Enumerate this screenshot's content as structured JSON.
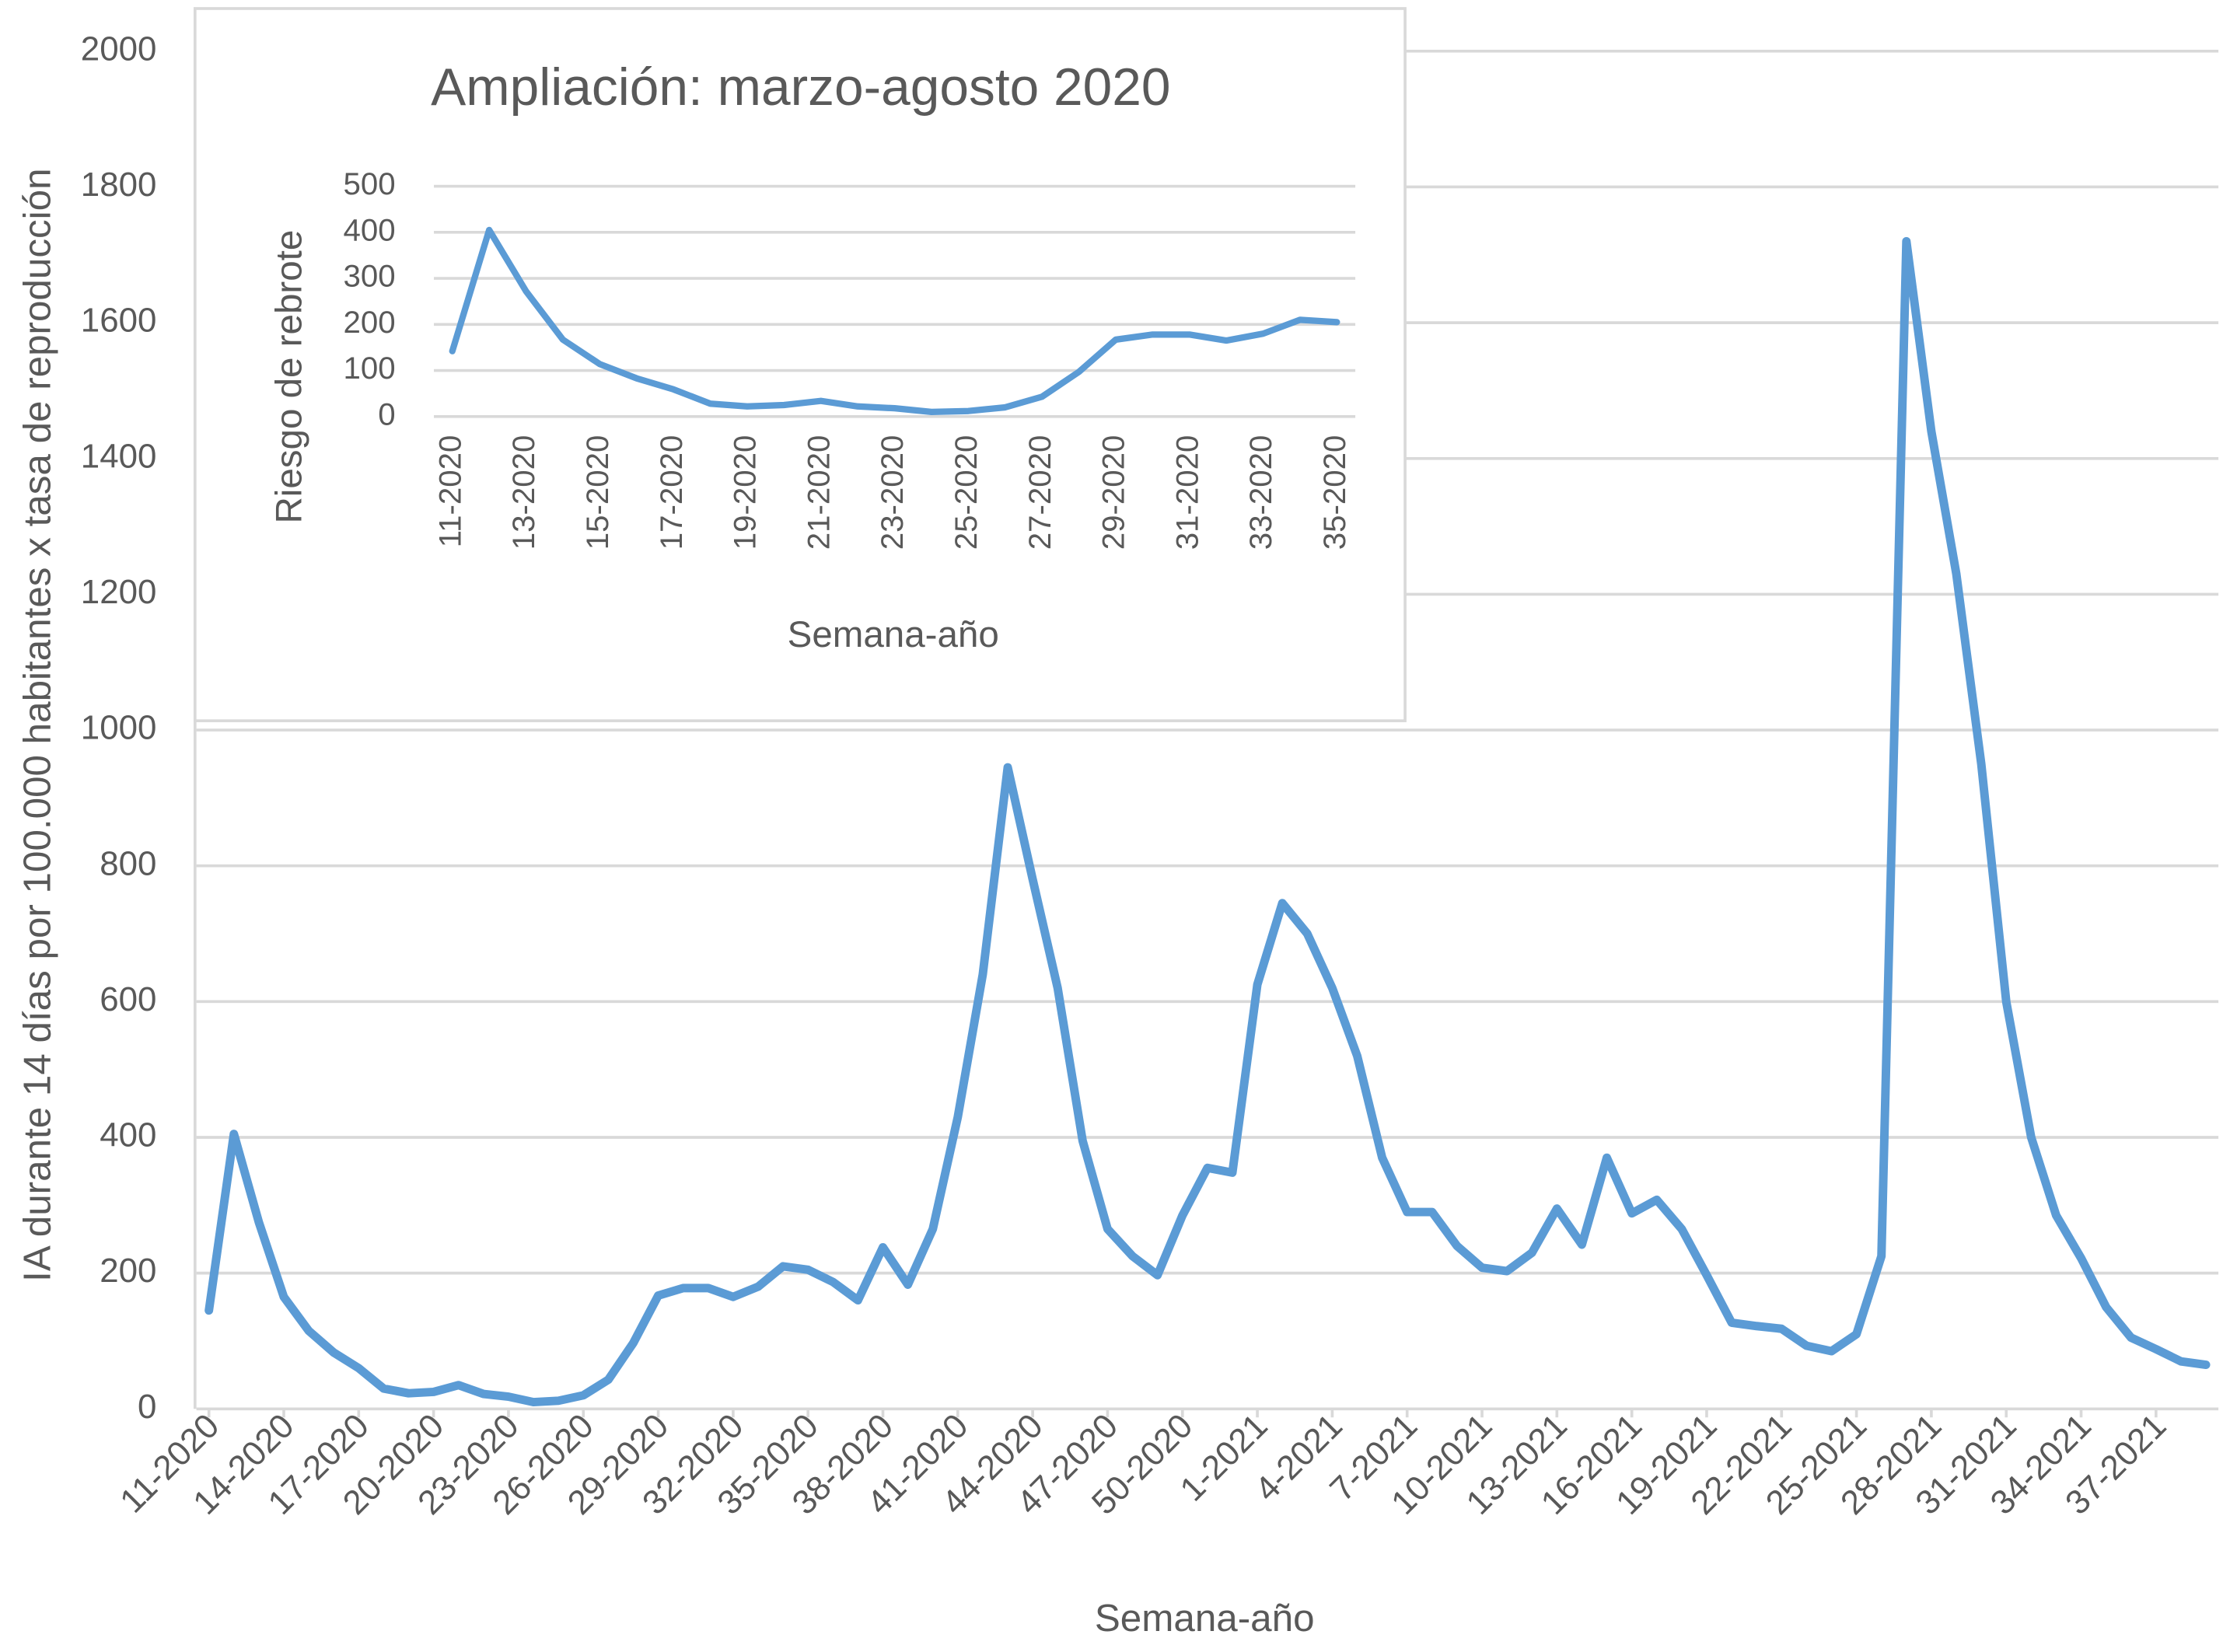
{
  "chart_data": [
    {
      "type": "line",
      "x_label": "Semana-año",
      "y_label": "IA durante 14 días por 100.000 habitantes x tasa de reproducción",
      "categories": [
        "11-2020",
        null,
        null,
        "14-2020",
        null,
        null,
        "17-2020",
        null,
        null,
        "20-2020",
        null,
        null,
        "23-2020",
        null,
        null,
        "26-2020",
        null,
        null,
        "29-2020",
        null,
        null,
        "32-2020",
        null,
        null,
        "35-2020",
        null,
        null,
        "38-2020",
        null,
        null,
        "41-2020",
        null,
        null,
        "44-2020",
        null,
        null,
        "47-2020",
        null,
        null,
        "50-2020",
        null,
        null,
        "1-2021",
        null,
        null,
        "4-2021",
        null,
        null,
        "7-2021",
        null,
        null,
        "10-2021",
        null,
        null,
        "13-2021",
        null,
        null,
        "16-2021",
        null,
        null,
        "19-2021",
        null,
        null,
        "22-2021",
        null,
        null,
        "25-2021",
        null,
        null,
        "28-2021",
        null,
        null,
        "31-2021",
        null,
        null,
        "34-2021",
        null,
        null,
        "37-2021",
        null,
        null
      ],
      "values": [
        145,
        405,
        275,
        165,
        115,
        83,
        60,
        30,
        23,
        25,
        35,
        22,
        18,
        10,
        12,
        20,
        43,
        97,
        167,
        178,
        178,
        165,
        180,
        210,
        205,
        187,
        160,
        238,
        183,
        265,
        430,
        640,
        945,
        780,
        620,
        395,
        265,
        225,
        197,
        285,
        355,
        348,
        625,
        745,
        700,
        620,
        520,
        370,
        290,
        290,
        240,
        208,
        203,
        230,
        295,
        242,
        370,
        288,
        308,
        265,
        197,
        127,
        122,
        118,
        93,
        85,
        110,
        225,
        1720,
        1440,
        1230,
        950,
        600,
        400,
        285,
        222,
        150,
        105,
        88,
        70,
        65
      ],
      "color": "#5b9bd5",
      "ylim": [
        0,
        2000
      ],
      "yticks": [
        0,
        200,
        400,
        600,
        800,
        1000,
        1200,
        1400,
        1600,
        1800,
        2000
      ],
      "grid": true
    },
    {
      "type": "line",
      "title": "Ampliación: marzo-agosto 2020",
      "x_label": "Semana-año",
      "y_label": "Riesgo de rebrote",
      "categories": [
        "11-2020",
        null,
        "13-2020",
        null,
        "15-2020",
        null,
        "17-2020",
        null,
        "19-2020",
        null,
        "21-2020",
        null,
        "23-2020",
        null,
        "25-2020",
        null,
        "27-2020",
        null,
        "29-2020",
        null,
        "31-2020",
        null,
        "33-2020",
        null,
        "35-2020"
      ],
      "values": [
        142,
        405,
        272,
        167,
        114,
        83,
        59,
        28,
        22,
        25,
        34,
        22,
        18,
        10,
        12,
        20,
        43,
        97,
        167,
        178,
        178,
        165,
        180,
        210,
        205
      ],
      "color": "#5b9bd5",
      "ylim": [
        0,
        500
      ],
      "yticks": [
        0,
        100,
        200,
        300,
        400,
        500
      ],
      "grid": true
    }
  ]
}
